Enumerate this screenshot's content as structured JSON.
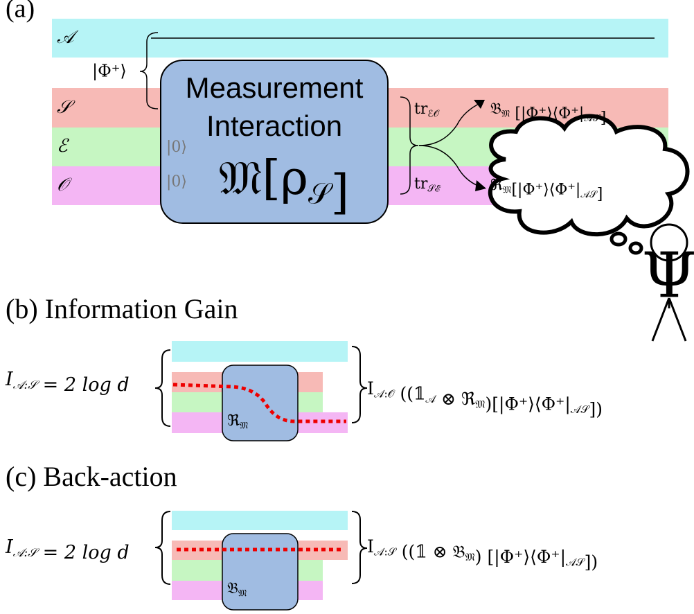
{
  "panel_a": {
    "label": "(a)",
    "systems": [
      "𝒜",
      "𝒮",
      "ℰ",
      "𝒪"
    ],
    "initial_state": "|Φ⁺⟩",
    "box": {
      "lines": [
        "Measurement",
        "Interaction"
      ],
      "formula": [
        {
          "text": "𝔐[ρ",
          "subscript": "𝒮"
        },
        {
          "text": "]"
        }
      ],
      "ancillas": [
        "|0⟩",
        "|0⟩"
      ]
    },
    "traces": [
      [
        {
          "text": "tr",
          "subscript": "ℰ𝒪"
        }
      ],
      [
        {
          "text": "tr",
          "subscript": "𝒮ℰ"
        }
      ]
    ],
    "outputs": [
      [
        {
          "text": "𝔅",
          "subscript": "𝔐"
        },
        {
          "text": " [|Φ⁺⟩⟨Φ⁺|",
          "subscript": "𝒜𝒮"
        },
        {
          "text": "]"
        }
      ],
      [
        {
          "text": "ℜ",
          "subscript": "𝔐"
        },
        {
          "text": "[|Φ⁺⟩⟨Φ⁺|",
          "subscript": "𝒜𝒮"
        },
        {
          "text": "]"
        }
      ]
    ],
    "observer": "Ψ"
  },
  "panel_b": {
    "title": "(b) Information Gain",
    "lhs": [
      {
        "text": "I",
        "subscript": "𝒜:𝒮"
      },
      {
        "text": " = 2 log d"
      }
    ],
    "box": [
      {
        "text": "ℜ",
        "subscript": "𝔐"
      }
    ],
    "rhs": [
      {
        "text": "I",
        "subscript": "𝒜:𝒪"
      },
      {
        "text": " ((𝟙",
        "subscript": "𝒜"
      },
      {
        "text": " ⊗ ℜ",
        "subscript": "𝔐"
      },
      {
        "text": ")[|Φ⁺⟩⟨Φ⁺|",
        "subscript": "𝒜𝒮"
      },
      {
        "text": "])"
      }
    ]
  },
  "panel_c": {
    "title": "(c) Back-action",
    "lhs": [
      {
        "text": "I",
        "subscript": "𝒜:𝒮"
      },
      {
        "text": " = 2 log d"
      }
    ],
    "box": [
      {
        "text": "𝔅",
        "subscript": "𝔐"
      }
    ],
    "rhs": [
      {
        "text": "I",
        "subscript": "𝒜:𝒮"
      },
      {
        "text": " ((𝟙 ⊗ 𝔅",
        "subscript": "𝔐"
      },
      {
        "text": ") [|Φ⁺⟩⟨Φ⁺|",
        "subscript": "𝒜𝒮"
      },
      {
        "text": "])"
      }
    ]
  }
}
